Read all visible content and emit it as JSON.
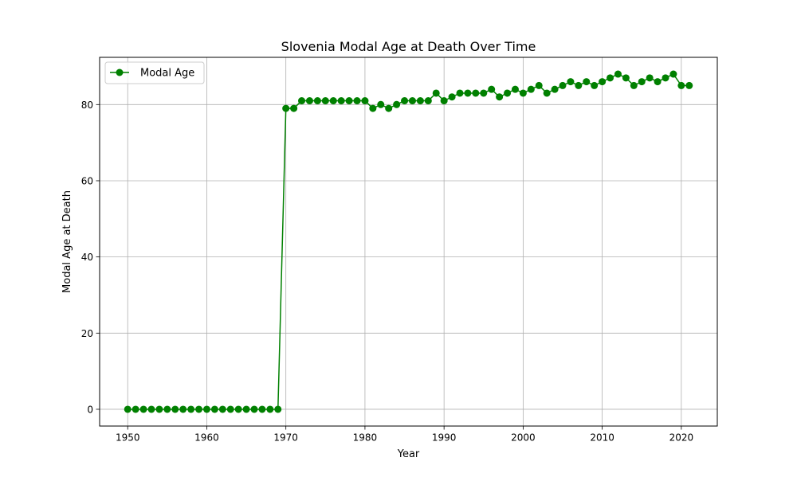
{
  "chart_data": {
    "type": "line",
    "title": "Slovenia Modal Age at Death Over Time",
    "xlabel": "Year",
    "ylabel": "Modal Age at Death",
    "xlim": [
      1946.45,
      2024.55
    ],
    "ylim": [
      -4.4,
      92.4
    ],
    "xticks": [
      1950,
      1960,
      1970,
      1980,
      1990,
      2000,
      2010,
      2020
    ],
    "yticks": [
      0,
      20,
      40,
      60,
      80
    ],
    "grid": true,
    "legend": {
      "position": "top-left",
      "entries": [
        "Modal Age"
      ]
    },
    "series": [
      {
        "name": "Modal Age",
        "color": "#008000",
        "marker": "circle",
        "x": [
          1950,
          1951,
          1952,
          1953,
          1954,
          1955,
          1956,
          1957,
          1958,
          1959,
          1960,
          1961,
          1962,
          1963,
          1964,
          1965,
          1966,
          1967,
          1968,
          1969,
          1970,
          1971,
          1972,
          1973,
          1974,
          1975,
          1976,
          1977,
          1978,
          1979,
          1980,
          1981,
          1982,
          1983,
          1984,
          1985,
          1986,
          1987,
          1988,
          1989,
          1990,
          1991,
          1992,
          1993,
          1994,
          1995,
          1996,
          1997,
          1998,
          1999,
          2000,
          2001,
          2002,
          2003,
          2004,
          2005,
          2006,
          2007,
          2008,
          2009,
          2010,
          2011,
          2012,
          2013,
          2014,
          2015,
          2016,
          2017,
          2018,
          2019,
          2020,
          2021
        ],
        "y": [
          0,
          0,
          0,
          0,
          0,
          0,
          0,
          0,
          0,
          0,
          0,
          0,
          0,
          0,
          0,
          0,
          0,
          0,
          0,
          0,
          79,
          79,
          81,
          81,
          81,
          81,
          81,
          81,
          81,
          81,
          81,
          79,
          80,
          79,
          80,
          81,
          81,
          81,
          81,
          83,
          81,
          82,
          83,
          83,
          83,
          83,
          84,
          82,
          83,
          84,
          83,
          84,
          85,
          83,
          84,
          85,
          86,
          85,
          86,
          85,
          86,
          87,
          88,
          87,
          85,
          86,
          87,
          86,
          87,
          88,
          85,
          85
        ]
      }
    ]
  }
}
